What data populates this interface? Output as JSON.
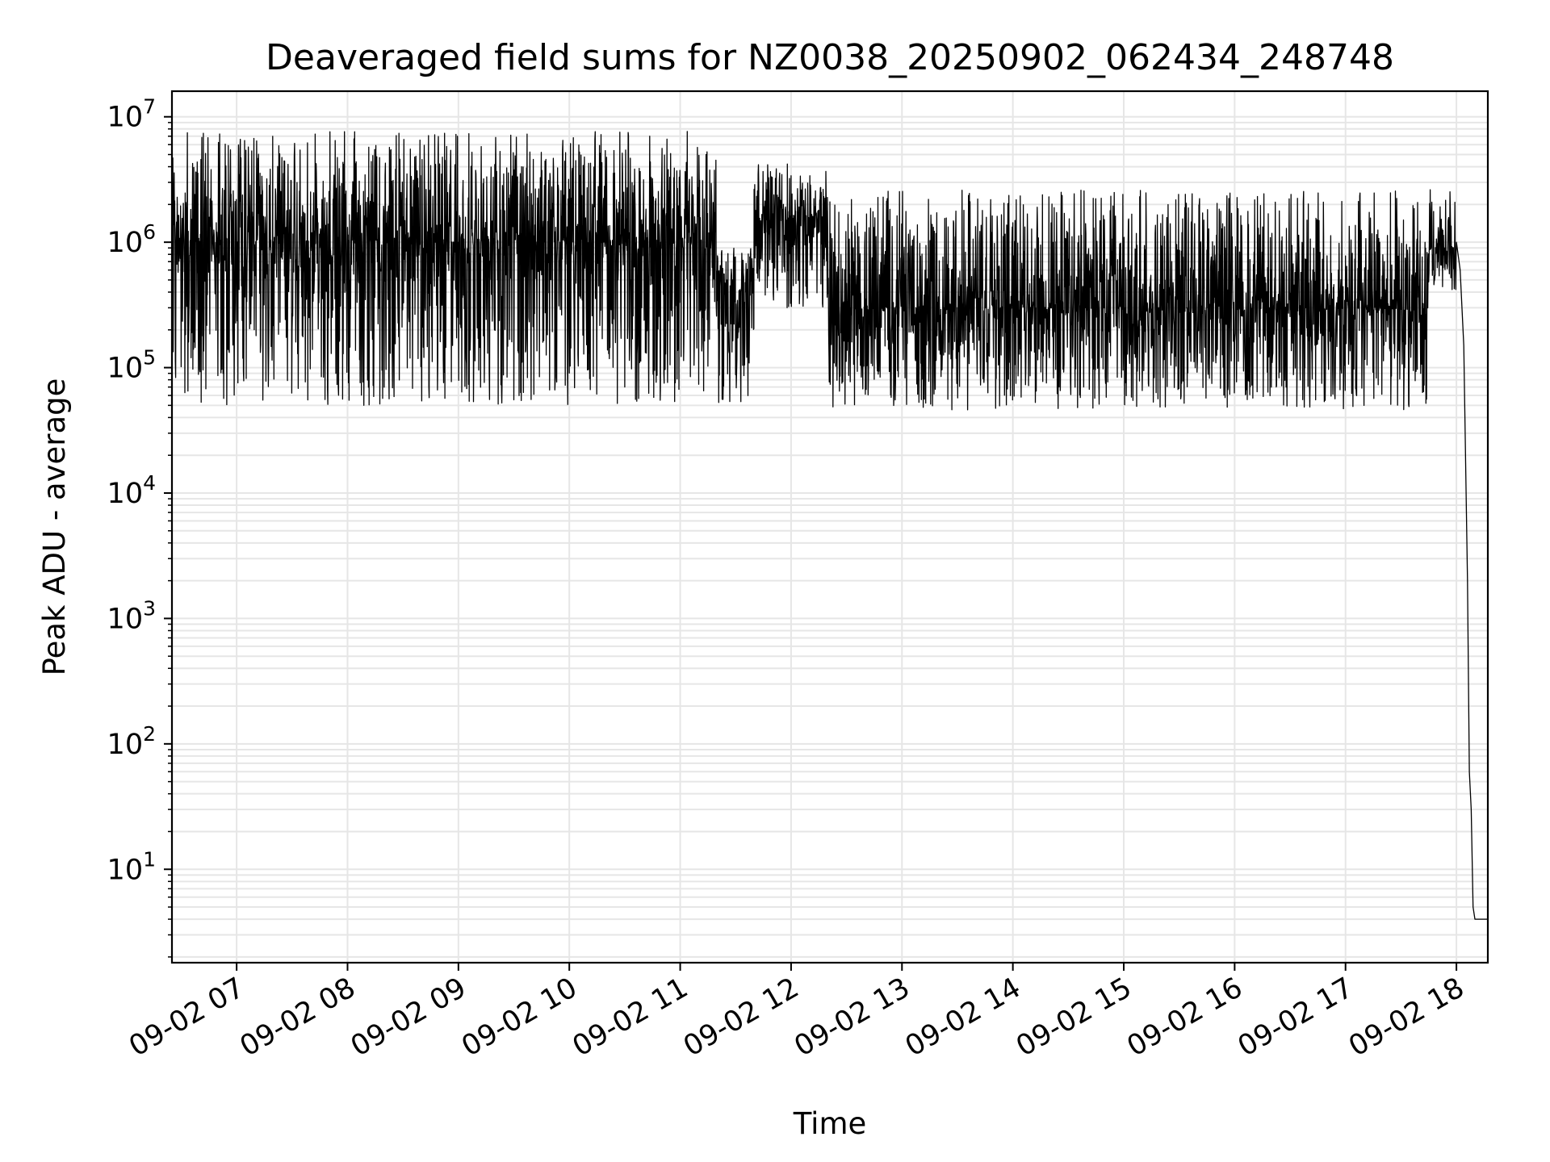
{
  "chart_data": {
    "type": "line",
    "title": "Deaveraged field sums for NZ0038_20250902_062434_248748",
    "xlabel": "Time",
    "ylabel": "Peak ADU - average",
    "yscale": "log",
    "ylim": [
      1.8,
      16000000
    ],
    "xlim": [
      "2025-09-02 06:25",
      "2025-09-02 18:17"
    ],
    "grid": true,
    "line_color": "#000000",
    "grid_color": "#e6e6e6",
    "x_ticks": [
      {
        "t": "2025-09-02 07:00",
        "label": "09-02 07"
      },
      {
        "t": "2025-09-02 08:00",
        "label": "09-02 08"
      },
      {
        "t": "2025-09-02 09:00",
        "label": "09-02 09"
      },
      {
        "t": "2025-09-02 10:00",
        "label": "09-02 10"
      },
      {
        "t": "2025-09-02 11:00",
        "label": "09-02 11"
      },
      {
        "t": "2025-09-02 12:00",
        "label": "09-02 12"
      },
      {
        "t": "2025-09-02 13:00",
        "label": "09-02 13"
      },
      {
        "t": "2025-09-02 14:00",
        "label": "09-02 14"
      },
      {
        "t": "2025-09-02 15:00",
        "label": "09-02 15"
      },
      {
        "t": "2025-09-02 16:00",
        "label": "09-02 16"
      },
      {
        "t": "2025-09-02 17:00",
        "label": "09-02 17"
      },
      {
        "t": "2025-09-02 18:00",
        "label": "09-02 18"
      }
    ],
    "y_ticks": [
      {
        "value": 10,
        "base": "10",
        "exp": "1"
      },
      {
        "value": 100,
        "base": "10",
        "exp": "2"
      },
      {
        "value": 1000,
        "base": "10",
        "exp": "3"
      },
      {
        "value": 10000,
        "base": "10",
        "exp": "4"
      },
      {
        "value": 100000,
        "base": "10",
        "exp": "5"
      },
      {
        "value": 1000000,
        "base": "10",
        "exp": "6"
      },
      {
        "value": 10000000,
        "base": "10",
        "exp": "7"
      }
    ],
    "series": [
      {
        "segments": [
          {
            "start": "2025-09-02 06:25",
            "end": "2025-09-02 11:20",
            "median": 1000000,
            "low": 50000,
            "high": 7700000
          },
          {
            "start": "2025-09-02 11:20",
            "end": "2025-09-02 11:40",
            "median": 400000,
            "low": 52000,
            "high": 900000
          },
          {
            "start": "2025-09-02 11:40",
            "end": "2025-09-02 12:20",
            "median": 1500000,
            "low": 300000,
            "high": 4300000
          },
          {
            "start": "2025-09-02 12:20",
            "end": "2025-09-02 17:45",
            "median": 300000,
            "low": 46000,
            "high": 2600000
          },
          {
            "start": "2025-09-02 17:45",
            "end": "2025-09-02 18:00",
            "median": 900000,
            "low": 400000,
            "high": 2700000
          }
        ],
        "points": [
          {
            "t": "2025-09-02 18:00",
            "y": 1000000
          },
          {
            "t": "2025-09-02 18:02",
            "y": 600000
          },
          {
            "t": "2025-09-02 18:04",
            "y": 150000
          },
          {
            "t": "2025-09-02 18:06",
            "y": 2000
          },
          {
            "t": "2025-09-02 18:07",
            "y": 60
          },
          {
            "t": "2025-09-02 18:08",
            "y": 30
          },
          {
            "t": "2025-09-02 18:09",
            "y": 5
          },
          {
            "t": "2025-09-02 18:10",
            "y": 4
          },
          {
            "t": "2025-09-02 18:17",
            "y": 4
          }
        ]
      }
    ]
  }
}
